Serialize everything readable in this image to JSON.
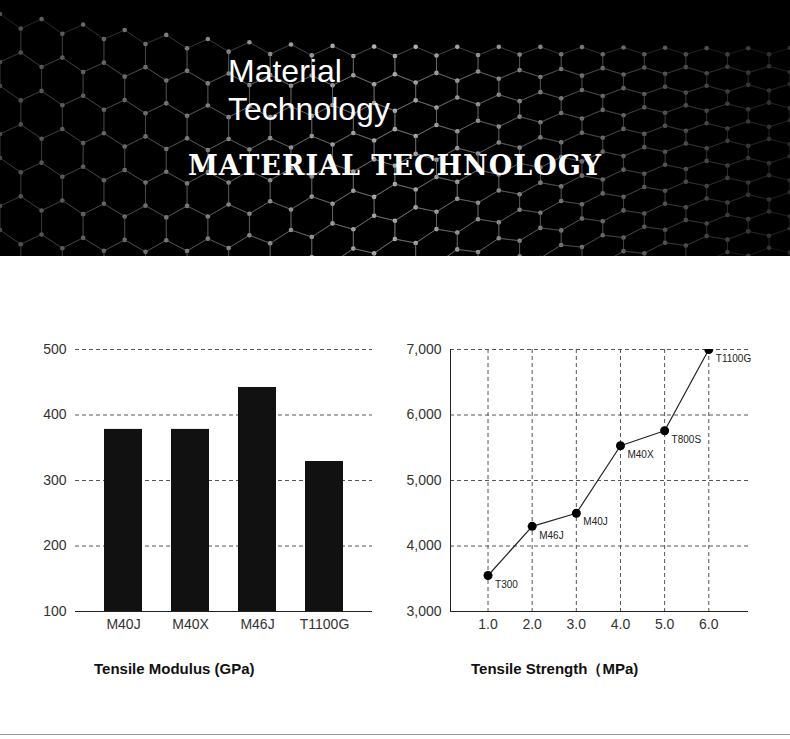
{
  "header": {
    "title": "Material Technology",
    "subtitle": "MATERIAL TECHNOLOGY"
  },
  "chart_data": [
    {
      "type": "bar",
      "title": "Tensile Modulus (GPa)",
      "categories": [
        "M40J",
        "M40X",
        "M46J",
        "T1100G"
      ],
      "values": [
        378,
        378,
        442,
        329
      ],
      "color": "#111111",
      "ylim": [
        100,
        500
      ],
      "yticks": [
        100,
        200,
        300,
        400,
        500
      ],
      "grid": true
    },
    {
      "type": "line",
      "title": "Tensile Strength（MPa)",
      "x": [
        1,
        2,
        3,
        4,
        5,
        6
      ],
      "values": [
        3550,
        4300,
        4500,
        5530,
        5760,
        7000
      ],
      "point_labels": [
        "T300",
        "M46J",
        "M40J",
        "M40X",
        "T800S",
        "T1100G"
      ],
      "color": "#222222",
      "marker": "circle",
      "xlim": [
        0.15,
        6.9
      ],
      "xticks": [
        1,
        2,
        3,
        4,
        5,
        6
      ],
      "ylim": [
        3000,
        7000
      ],
      "yticks": [
        3000,
        4000,
        5000,
        6000,
        7000
      ],
      "grid": true
    }
  ]
}
